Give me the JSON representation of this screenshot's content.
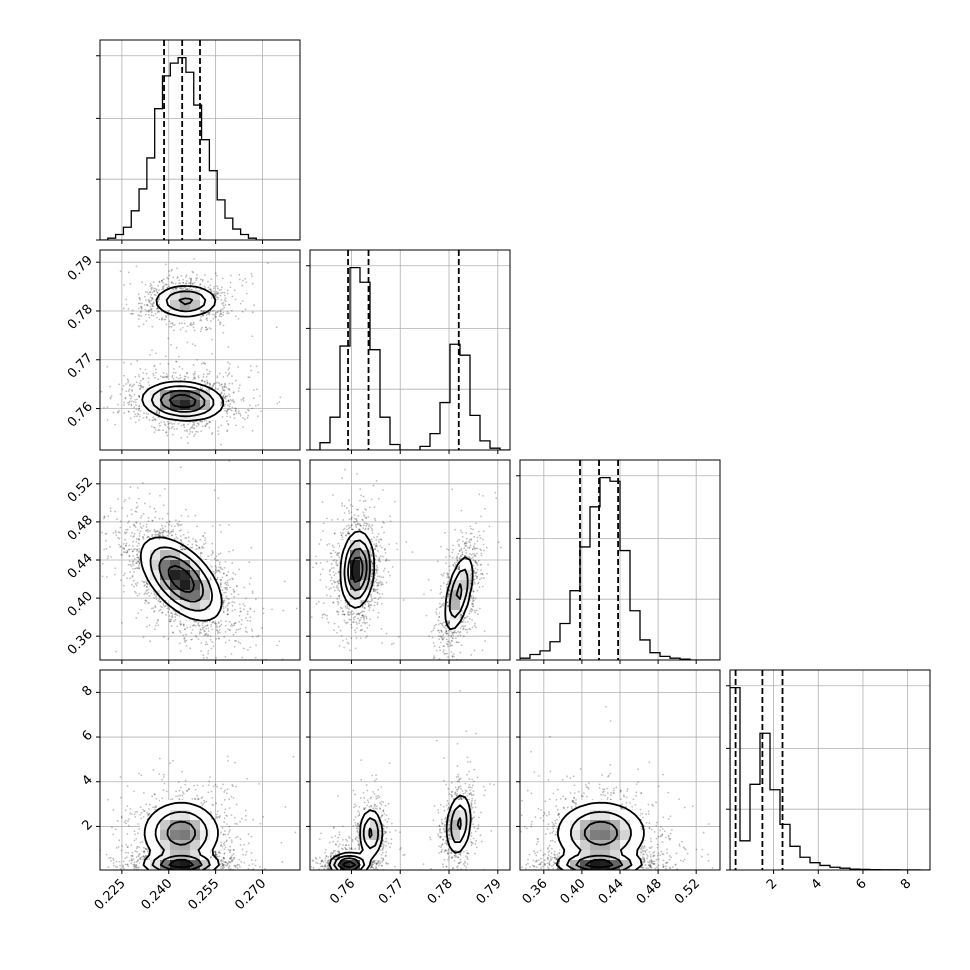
{
  "chart_data": {
    "type": "corner",
    "title": "",
    "parameters": [
      {
        "label": "",
        "range": [
          0.218,
          0.282
        ],
        "ticks": [
          "0.225",
          "0.240",
          "0.255",
          "0.270"
        ]
      },
      {
        "label": "",
        "range": [
          0.7515,
          0.7925
        ],
        "ticks": [
          "0.76",
          "0.77",
          "0.78",
          "0.79"
        ]
      },
      {
        "label": "",
        "range": [
          0.335,
          0.545
        ],
        "ticks": [
          "0.36",
          "0.40",
          "0.44",
          "0.48",
          "0.52"
        ]
      },
      {
        "label": "",
        "range": [
          0.05,
          9.0
        ],
        "ticks": [
          "2",
          "4",
          "6",
          "8"
        ]
      }
    ],
    "marginals": [
      {
        "bin_edges_start": 0.218,
        "bin_width": 0.0025,
        "counts": [
          0,
          0.01,
          0.03,
          0.07,
          0.16,
          0.28,
          0.45,
          0.72,
          0.9,
          0.97,
          1.0,
          0.92,
          0.74,
          0.55,
          0.38,
          0.22,
          0.12,
          0.06,
          0.03,
          0.01,
          0,
          0,
          0,
          0,
          0,
          0
        ],
        "quantiles": [
          0.2385,
          0.2443,
          0.25
        ]
      },
      {
        "bin_edges_start": 0.7515,
        "bin_width": 0.00205,
        "counts": [
          0,
          0.04,
          0.18,
          0.57,
          1.0,
          0.92,
          0.55,
          0.18,
          0.03,
          0,
          0,
          0.02,
          0.09,
          0.26,
          0.58,
          0.52,
          0.19,
          0.05,
          0.01,
          0
        ],
        "quantiles": [
          0.7593,
          0.7635,
          0.782
        ]
      },
      {
        "bin_edges_start": 0.335,
        "bin_width": 0.0105,
        "counts": [
          0.01,
          0.03,
          0.05,
          0.1,
          0.2,
          0.38,
          0.62,
          0.84,
          1.0,
          0.98,
          0.6,
          0.27,
          0.11,
          0.04,
          0.02,
          0.01,
          0.005,
          0,
          0,
          0
        ],
        "quantiles": [
          0.398,
          0.418,
          0.438
        ]
      },
      {
        "bin_edges_start": 0.05,
        "bin_width": 0.4475,
        "counts": [
          1.0,
          0.16,
          0.47,
          0.75,
          0.44,
          0.25,
          0.13,
          0.07,
          0.04,
          0.025,
          0.015,
          0.01,
          0.005,
          0.003,
          0.002,
          0.001,
          0.001,
          0.0005,
          0.0003,
          0.0002
        ],
        "quantiles": [
          0.3,
          1.5,
          2.4
        ]
      }
    ],
    "joint_blobs": [
      {
        "pair": [
          1,
          0
        ],
        "blobs": [
          {
            "cx": 0.2455,
            "cy": 0.782,
            "sx": 0.0055,
            "sy": 0.0018,
            "rho": 0.0,
            "w": 0.6
          },
          {
            "cx": 0.2445,
            "cy": 0.7615,
            "sx": 0.0065,
            "sy": 0.002,
            "rho": -0.1,
            "w": 1.0
          }
        ]
      },
      {
        "pair": [
          2,
          0
        ],
        "blobs": [
          {
            "cx": 0.244,
            "cy": 0.42,
            "sx": 0.0065,
            "sy": 0.022,
            "rho": -0.55,
            "w": 1.0
          }
        ]
      },
      {
        "pair": [
          2,
          1
        ],
        "blobs": [
          {
            "cx": 0.7612,
            "cy": 0.43,
            "sx": 0.0017,
            "sy": 0.02,
            "rho": 0.1,
            "w": 1.0
          },
          {
            "cx": 0.782,
            "cy": 0.405,
            "sx": 0.0016,
            "sy": 0.022,
            "rho": 0.55,
            "w": 0.6
          }
        ]
      },
      {
        "pair": [
          3,
          0
        ],
        "blobs": [
          {
            "cx": 0.244,
            "cy": 1.7,
            "sx": 0.0065,
            "sy": 0.75,
            "rho": 0.0,
            "w": 0.8
          },
          {
            "cx": 0.244,
            "cy": 0.3,
            "sx": 0.006,
            "sy": 0.25,
            "rho": 0.0,
            "w": 1.0
          }
        ]
      },
      {
        "pair": [
          3,
          1
        ],
        "blobs": [
          {
            "cx": 0.764,
            "cy": 1.7,
            "sx": 0.0013,
            "sy": 0.6,
            "rho": 0.0,
            "w": 0.6
          },
          {
            "cx": 0.7595,
            "cy": 0.3,
            "sx": 0.002,
            "sy": 0.25,
            "rho": 0.0,
            "w": 1.0
          },
          {
            "cx": 0.782,
            "cy": 2.1,
            "sx": 0.0014,
            "sy": 0.75,
            "rho": 0.2,
            "w": 0.6
          }
        ]
      },
      {
        "pair": [
          3,
          2
        ],
        "blobs": [
          {
            "cx": 0.42,
            "cy": 1.7,
            "sx": 0.025,
            "sy": 0.75,
            "rho": 0.0,
            "w": 0.8
          },
          {
            "cx": 0.418,
            "cy": 0.3,
            "sx": 0.022,
            "sy": 0.25,
            "rho": 0.0,
            "w": 1.0
          }
        ]
      }
    ],
    "grid": true,
    "quantile_lines": "dashed",
    "color": "#000000"
  }
}
